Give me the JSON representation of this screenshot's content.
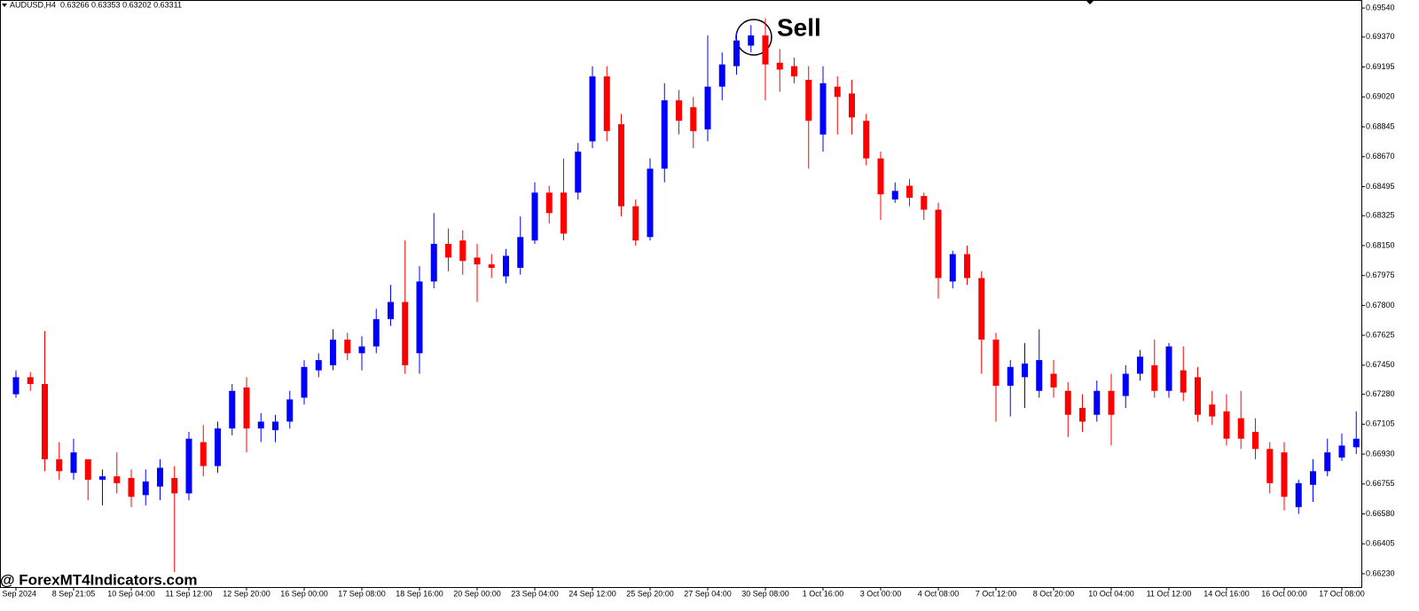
{
  "chart_data": {
    "type": "candlestick",
    "header": {
      "symbol": "AUDUSD,H4",
      "quote": "0.63266 0.63353 0.63202 0.63311"
    },
    "annotation": "Sell",
    "watermark": "@ ForexMT4Indicators.com",
    "up_color": "#0000ff",
    "down_color": "#ff0000",
    "categories": [
      "5 Sep 2024",
      null,
      null,
      null,
      "8 Sep 21:05",
      null,
      null,
      null,
      "10 Sep 04:00",
      null,
      null,
      null,
      "11 Sep 12:00",
      null,
      null,
      null,
      "12 Sep 20:00",
      null,
      null,
      null,
      "16 Sep 00:00",
      null,
      null,
      null,
      "17 Sep 08:00",
      null,
      null,
      null,
      "18 Sep 16:00",
      null,
      null,
      null,
      "20 Sep 00:00",
      null,
      null,
      null,
      "23 Sep 04:00",
      null,
      null,
      null,
      "24 Sep 12:00",
      null,
      null,
      null,
      "25 Sep 20:00",
      null,
      null,
      null,
      "27 Sep 04:00",
      null,
      null,
      null,
      "30 Sep 08:00",
      null,
      null,
      null,
      "1 Oct 16:00",
      null,
      null,
      null,
      "3 Oct 00:00",
      null,
      null,
      null,
      "4 Oct 08:00",
      null,
      null,
      null,
      "7 Oct 12:00",
      null,
      null,
      null,
      "8 Oct 20:00",
      null,
      null,
      null,
      "10 Oct 04:00",
      null,
      null,
      null,
      "11 Oct 12:00",
      null,
      null,
      null,
      "14 Oct 16:00",
      null,
      null,
      null,
      "16 Oct 00:00",
      null,
      null,
      null,
      "17 Oct 08:00",
      null
    ],
    "open": [
      0.6728,
      0.6738,
      0.6734,
      0.669,
      0.6682,
      0.669,
      0.6678,
      0.668,
      0.6679,
      0.6669,
      0.6674,
      0.6679,
      0.667,
      0.67,
      0.6686,
      0.6708,
      0.6732,
      0.6708,
      0.6707,
      0.6712,
      0.6726,
      0.6742,
      0.6745,
      0.676,
      0.6752,
      0.6756,
      0.6772,
      0.6782,
      0.6752,
      0.6794,
      0.6816,
      0.6818,
      0.6808,
      0.6804,
      0.6797,
      0.6802,
      0.6818,
      0.6846,
      0.6846,
      0.6846,
      0.6876,
      0.6914,
      0.6886,
      0.6838,
      0.682,
      0.686,
      0.69,
      0.6896,
      0.6883,
      0.6908,
      0.692,
      0.6932,
      0.6938,
      0.6922,
      0.692,
      0.6912,
      0.688,
      0.6908,
      0.6904,
      0.6888,
      0.6866,
      0.6842,
      0.685,
      0.6844,
      0.6836,
      0.6794,
      0.681,
      0.6796,
      0.676,
      0.6733,
      0.6738,
      0.673,
      0.674,
      0.673,
      0.672,
      0.6716,
      0.673,
      0.6727,
      0.674,
      0.6745,
      0.673,
      0.6742,
      0.6738,
      0.6722,
      0.6718,
      0.6714,
      0.6706,
      0.6696,
      0.6694,
      0.6662,
      0.6675,
      0.6683,
      0.6691,
      0.6697
    ],
    "high": [
      0.6742,
      0.6741,
      0.6765,
      0.67,
      0.6702,
      0.6688,
      0.6684,
      0.6694,
      0.6684,
      0.6684,
      0.669,
      0.6686,
      0.6706,
      0.671,
      0.6712,
      0.6734,
      0.6738,
      0.6717,
      0.6716,
      0.673,
      0.6748,
      0.6752,
      0.6766,
      0.6764,
      0.6762,
      0.6778,
      0.6792,
      0.6818,
      0.6803,
      0.6834,
      0.6825,
      0.6824,
      0.6816,
      0.681,
      0.6813,
      0.6832,
      0.6852,
      0.685,
      0.6866,
      0.6875,
      0.692,
      0.692,
      0.6892,
      0.6842,
      0.6866,
      0.691,
      0.6906,
      0.6902,
      0.6938,
      0.6928,
      0.694,
      0.6944,
      0.6948,
      0.693,
      0.6925,
      0.692,
      0.692,
      0.6914,
      0.6912,
      0.6892,
      0.687,
      0.6852,
      0.6854,
      0.6846,
      0.684,
      0.6812,
      0.6815,
      0.68,
      0.6764,
      0.6748,
      0.6758,
      0.6766,
      0.6748,
      0.6735,
      0.6728,
      0.6736,
      0.674,
      0.6745,
      0.6754,
      0.676,
      0.6758,
      0.6756,
      0.6744,
      0.673,
      0.6728,
      0.673,
      0.6714,
      0.67,
      0.67,
      0.6678,
      0.669,
      0.6702,
      0.6705,
      0.6718
    ],
    "low": [
      0.6726,
      0.673,
      0.6683,
      0.6678,
      0.6678,
      0.6666,
      0.6663,
      0.667,
      0.6662,
      0.6663,
      0.6666,
      0.6624,
      0.6666,
      0.668,
      0.6682,
      0.6704,
      0.6694,
      0.67,
      0.67,
      0.6708,
      0.6722,
      0.6738,
      0.6742,
      0.6748,
      0.6742,
      0.6752,
      0.6768,
      0.674,
      0.674,
      0.679,
      0.68,
      0.6798,
      0.6782,
      0.6796,
      0.6793,
      0.6798,
      0.6816,
      0.6828,
      0.6818,
      0.6842,
      0.6872,
      0.6876,
      0.6832,
      0.6815,
      0.6818,
      0.6852,
      0.688,
      0.6872,
      0.6876,
      0.69,
      0.6915,
      0.6928,
      0.69,
      0.6905,
      0.691,
      0.686,
      0.687,
      0.688,
      0.688,
      0.6862,
      0.683,
      0.684,
      0.6838,
      0.683,
      0.6784,
      0.679,
      0.6792,
      0.674,
      0.6712,
      0.6715,
      0.672,
      0.6726,
      0.6726,
      0.6703,
      0.6706,
      0.6712,
      0.6698,
      0.672,
      0.6736,
      0.6726,
      0.6726,
      0.6724,
      0.6712,
      0.671,
      0.6698,
      0.6696,
      0.669,
      0.667,
      0.666,
      0.6658,
      0.6665,
      0.668,
      0.6689,
      0.6693
    ],
    "close": [
      0.6738,
      0.6734,
      0.669,
      0.6683,
      0.6694,
      0.6678,
      0.668,
      0.6676,
      0.6668,
      0.6677,
      0.6685,
      0.667,
      0.6702,
      0.6686,
      0.6708,
      0.673,
      0.6708,
      0.6712,
      0.6712,
      0.6725,
      0.6744,
      0.6748,
      0.676,
      0.6752,
      0.6756,
      0.6772,
      0.6782,
      0.6745,
      0.6794,
      0.6816,
      0.6808,
      0.6806,
      0.6804,
      0.6802,
      0.6809,
      0.682,
      0.6846,
      0.6834,
      0.6822,
      0.687,
      0.6914,
      0.6882,
      0.6838,
      0.6818,
      0.686,
      0.69,
      0.6888,
      0.6882,
      0.6908,
      0.6921,
      0.6935,
      0.6938,
      0.6921,
      0.6918,
      0.6914,
      0.6888,
      0.691,
      0.6902,
      0.689,
      0.6866,
      0.6845,
      0.6847,
      0.6843,
      0.6836,
      0.6796,
      0.681,
      0.6796,
      0.676,
      0.6733,
      0.6744,
      0.6746,
      0.6748,
      0.6732,
      0.6716,
      0.6712,
      0.673,
      0.6716,
      0.674,
      0.675,
      0.673,
      0.6756,
      0.6729,
      0.6716,
      0.6715,
      0.6702,
      0.6702,
      0.6696,
      0.6676,
      0.6668,
      0.6676,
      0.6683,
      0.6694,
      0.6698,
      0.6702
    ],
    "ylim": [
      0.66152,
      0.69587
    ],
    "yticks": [
      {
        "value": 0.6954,
        "label": "0.69540"
      },
      {
        "value": 0.6937,
        "label": "0.69370"
      },
      {
        "value": 0.69195,
        "label": "0.69195"
      },
      {
        "value": 0.6902,
        "label": "0.69020"
      },
      {
        "value": 0.68845,
        "label": "0.68845"
      },
      {
        "value": 0.6867,
        "label": "0.68670"
      },
      {
        "value": 0.68495,
        "label": "0.68495"
      },
      {
        "value": 0.68325,
        "label": "0.68325"
      },
      {
        "value": 0.6815,
        "label": "0.68150"
      },
      {
        "value": 0.67975,
        "label": "0.67975"
      },
      {
        "value": 0.678,
        "label": "0.67800"
      },
      {
        "value": 0.67625,
        "label": "0.67625"
      },
      {
        "value": 0.6745,
        "label": "0.67450"
      },
      {
        "value": 0.6728,
        "label": "0.67280"
      },
      {
        "value": 0.67105,
        "label": "0.67105"
      },
      {
        "value": 0.6693,
        "label": "0.66930"
      },
      {
        "value": 0.66755,
        "label": "0.66755"
      },
      {
        "value": 0.6658,
        "label": "0.66580"
      },
      {
        "value": 0.66405,
        "label": "0.66405"
      },
      {
        "value": 0.6623,
        "label": "0.66230"
      }
    ]
  }
}
